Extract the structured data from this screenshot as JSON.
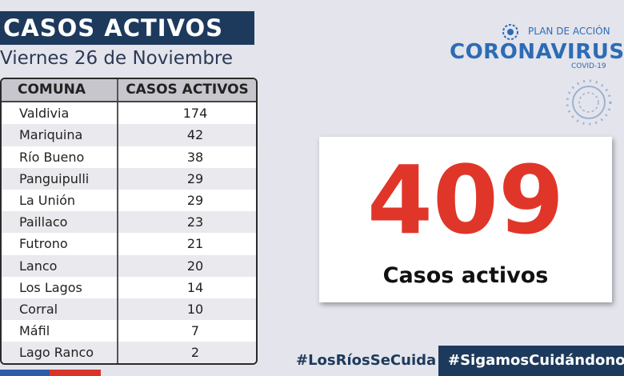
{
  "header": {
    "title": "CASOS ACTIVOS",
    "date": "Viernes 26 de Noviembre"
  },
  "table": {
    "columns": [
      "COMUNA",
      "CASOS ACTIVOS"
    ],
    "rows": [
      [
        "Valdivia",
        174
      ],
      [
        "Mariquina",
        42
      ],
      [
        "Río Bueno",
        38
      ],
      [
        "Panguipulli",
        29
      ],
      [
        "La Unión",
        29
      ],
      [
        "Paillaco",
        23
      ],
      [
        "Futrono",
        21
      ],
      [
        "Lanco",
        20
      ],
      [
        "Los Lagos",
        14
      ],
      [
        "Corral",
        10
      ],
      [
        "Máfil",
        7
      ],
      [
        "Lago Ranco",
        2
      ]
    ]
  },
  "total": {
    "value": 409,
    "label": "Casos activos"
  },
  "logo": {
    "plan": "PLAN DE ACCIÓN",
    "name": "CORONAVIRUS",
    "sub": "COVID-19"
  },
  "footer": {
    "hashtag_1": "#LosRíosSeCuida",
    "hashtag_2": "#SigamosCuidándonos"
  }
}
